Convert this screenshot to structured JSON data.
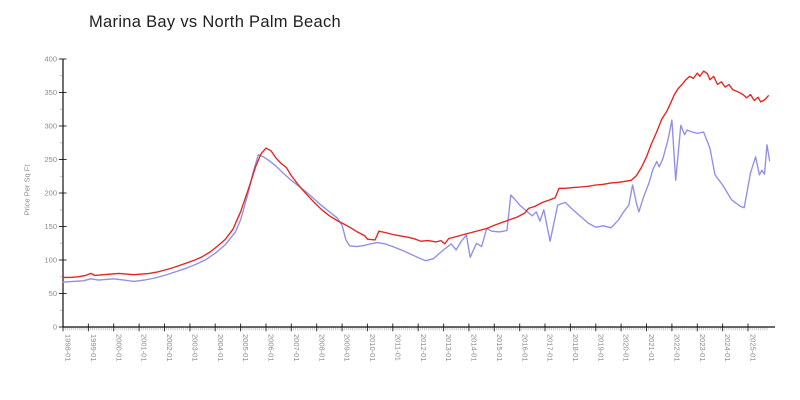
{
  "page": {
    "background": "#ffffff"
  },
  "colors": {
    "axis": "#111111",
    "major_tick": "#333333",
    "minor_tick": "#bdbdbd",
    "tick_label": "#8a8a8a",
    "title": "#1f1f1f"
  },
  "chart_data": {
    "type": "line",
    "title": "Marina Bay vs North Palm Beach",
    "xlabel": "",
    "ylabel": "Price Per Sq Ft",
    "x_unit": "year-month",
    "xlim": [
      1998.0,
      2026.0
    ],
    "ylim": [
      0,
      400
    ],
    "grid": false,
    "legend_position": "none",
    "y_ticks": [
      0,
      50,
      100,
      150,
      200,
      250,
      300,
      350,
      400
    ],
    "x_tick_labels": [
      "1998-01",
      "1999-01",
      "2000-01",
      "2001-01",
      "2002-01",
      "2003-01",
      "2004-01",
      "2005-01",
      "2006-01",
      "2007-01",
      "2008-01",
      "2009-01",
      "2010-01",
      "2011-01",
      "2012-01",
      "2013-01",
      "2014-01",
      "2015-01",
      "2016-01",
      "2017-01",
      "2018-01",
      "2019-01",
      "2020-01",
      "2021-01",
      "2022-01",
      "2023-01",
      "2024-01",
      "2025-01"
    ],
    "series": [
      {
        "name": "Marina Bay",
        "color": "#8f8fe8",
        "points": [
          [
            1998.0,
            67
          ],
          [
            1998.4,
            68
          ],
          [
            1998.8,
            69
          ],
          [
            1999.1,
            72
          ],
          [
            1999.4,
            70
          ],
          [
            1999.7,
            71
          ],
          [
            2000.0,
            72
          ],
          [
            2000.4,
            70
          ],
          [
            2000.8,
            68
          ],
          [
            2001.2,
            70
          ],
          [
            2001.6,
            73
          ],
          [
            2002.0,
            77
          ],
          [
            2002.4,
            82
          ],
          [
            2002.8,
            87
          ],
          [
            2003.2,
            93
          ],
          [
            2003.6,
            100
          ],
          [
            2004.0,
            110
          ],
          [
            2004.4,
            123
          ],
          [
            2004.8,
            142
          ],
          [
            2005.0,
            160
          ],
          [
            2005.3,
            200
          ],
          [
            2005.5,
            232
          ],
          [
            2005.7,
            257
          ],
          [
            2005.9,
            254
          ],
          [
            2006.1,
            249
          ],
          [
            2006.4,
            240
          ],
          [
            2006.7,
            229
          ],
          [
            2007.0,
            219
          ],
          [
            2007.3,
            210
          ],
          [
            2007.6,
            201
          ],
          [
            2007.9,
            191
          ],
          [
            2008.2,
            181
          ],
          [
            2008.5,
            172
          ],
          [
            2008.8,
            163
          ],
          [
            2009.0,
            152
          ],
          [
            2009.15,
            130
          ],
          [
            2009.3,
            121
          ],
          [
            2009.6,
            120
          ],
          [
            2009.9,
            122
          ],
          [
            2010.1,
            124
          ],
          [
            2010.4,
            126
          ],
          [
            2010.7,
            124
          ],
          [
            2011.0,
            120
          ],
          [
            2011.4,
            114
          ],
          [
            2011.8,
            107
          ],
          [
            2012.1,
            102
          ],
          [
            2012.3,
            99
          ],
          [
            2012.6,
            102
          ],
          [
            2012.9,
            112
          ],
          [
            2013.1,
            118
          ],
          [
            2013.3,
            124
          ],
          [
            2013.5,
            115
          ],
          [
            2013.7,
            128
          ],
          [
            2013.9,
            137
          ],
          [
            2014.05,
            104
          ],
          [
            2014.3,
            125
          ],
          [
            2014.5,
            120
          ],
          [
            2014.7,
            147
          ],
          [
            2014.9,
            143
          ],
          [
            2015.2,
            142
          ],
          [
            2015.5,
            144
          ],
          [
            2015.65,
            197
          ],
          [
            2015.8,
            191
          ],
          [
            2016.0,
            182
          ],
          [
            2016.3,
            172
          ],
          [
            2016.5,
            166
          ],
          [
            2016.65,
            172
          ],
          [
            2016.8,
            158
          ],
          [
            2016.95,
            175
          ],
          [
            2017.2,
            128
          ],
          [
            2017.5,
            182
          ],
          [
            2017.8,
            186
          ],
          [
            2018.1,
            175
          ],
          [
            2018.4,
            165
          ],
          [
            2018.7,
            155
          ],
          [
            2019.0,
            149
          ],
          [
            2019.3,
            151
          ],
          [
            2019.6,
            148
          ],
          [
            2019.9,
            160
          ],
          [
            2020.1,
            172
          ],
          [
            2020.3,
            182
          ],
          [
            2020.45,
            212
          ],
          [
            2020.6,
            185
          ],
          [
            2020.7,
            172
          ],
          [
            2020.9,
            196
          ],
          [
            2021.1,
            215
          ],
          [
            2021.25,
            235
          ],
          [
            2021.4,
            247
          ],
          [
            2021.5,
            239
          ],
          [
            2021.65,
            252
          ],
          [
            2021.85,
            280
          ],
          [
            2022.0,
            309
          ],
          [
            2022.15,
            219
          ],
          [
            2022.35,
            301
          ],
          [
            2022.5,
            287
          ],
          [
            2022.6,
            294
          ],
          [
            2022.8,
            291
          ],
          [
            2023.0,
            289
          ],
          [
            2023.25,
            291
          ],
          [
            2023.5,
            267
          ],
          [
            2023.7,
            227
          ],
          [
            2024.0,
            212
          ],
          [
            2024.35,
            190
          ],
          [
            2024.7,
            180
          ],
          [
            2024.85,
            178
          ],
          [
            2025.1,
            230
          ],
          [
            2025.3,
            254
          ],
          [
            2025.45,
            227
          ],
          [
            2025.55,
            234
          ],
          [
            2025.65,
            228
          ],
          [
            2025.75,
            272
          ],
          [
            2025.85,
            248
          ]
        ]
      },
      {
        "name": "North Palm Beach",
        "color": "#e3241f",
        "points": [
          [
            1998.0,
            74
          ],
          [
            1998.3,
            74
          ],
          [
            1998.6,
            75
          ],
          [
            1998.9,
            77
          ],
          [
            1999.1,
            80
          ],
          [
            1999.25,
            77
          ],
          [
            1999.6,
            78
          ],
          [
            1999.9,
            79
          ],
          [
            2000.2,
            80
          ],
          [
            2000.5,
            79
          ],
          [
            2000.8,
            78
          ],
          [
            2001.1,
            79
          ],
          [
            2001.4,
            80
          ],
          [
            2001.7,
            82
          ],
          [
            2002.0,
            85
          ],
          [
            2002.3,
            88
          ],
          [
            2002.6,
            92
          ],
          [
            2002.9,
            96
          ],
          [
            2003.2,
            100
          ],
          [
            2003.5,
            105
          ],
          [
            2003.8,
            112
          ],
          [
            2004.1,
            121
          ],
          [
            2004.4,
            131
          ],
          [
            2004.7,
            146
          ],
          [
            2005.0,
            172
          ],
          [
            2005.3,
            205
          ],
          [
            2005.6,
            240
          ],
          [
            2005.8,
            258
          ],
          [
            2006.0,
            267
          ],
          [
            2006.2,
            263
          ],
          [
            2006.4,
            252
          ],
          [
            2006.6,
            244
          ],
          [
            2006.8,
            238
          ],
          [
            2007.0,
            226
          ],
          [
            2007.3,
            211
          ],
          [
            2007.6,
            198
          ],
          [
            2007.9,
            186
          ],
          [
            2008.2,
            175
          ],
          [
            2008.5,
            166
          ],
          [
            2008.8,
            159
          ],
          [
            2009.0,
            155
          ],
          [
            2009.3,
            149
          ],
          [
            2009.6,
            142
          ],
          [
            2009.9,
            136
          ],
          [
            2010.0,
            131
          ],
          [
            2010.3,
            130
          ],
          [
            2010.45,
            143
          ],
          [
            2010.7,
            141
          ],
          [
            2011.0,
            138
          ],
          [
            2011.3,
            136
          ],
          [
            2011.6,
            134
          ],
          [
            2011.9,
            131
          ],
          [
            2012.1,
            128
          ],
          [
            2012.4,
            129
          ],
          [
            2012.7,
            127
          ],
          [
            2012.9,
            129
          ],
          [
            2013.05,
            124
          ],
          [
            2013.2,
            132
          ],
          [
            2013.5,
            135
          ],
          [
            2013.8,
            138
          ],
          [
            2014.1,
            141
          ],
          [
            2014.4,
            144
          ],
          [
            2014.7,
            147
          ],
          [
            2015.0,
            152
          ],
          [
            2015.3,
            156
          ],
          [
            2015.6,
            160
          ],
          [
            2015.9,
            164
          ],
          [
            2016.2,
            170
          ],
          [
            2016.35,
            177
          ],
          [
            2016.6,
            180
          ],
          [
            2016.9,
            186
          ],
          [
            2017.2,
            190
          ],
          [
            2017.4,
            193
          ],
          [
            2017.55,
            207
          ],
          [
            2017.8,
            207
          ],
          [
            2018.1,
            208
          ],
          [
            2018.4,
            209
          ],
          [
            2018.7,
            210
          ],
          [
            2019.0,
            212
          ],
          [
            2019.3,
            213
          ],
          [
            2019.6,
            215
          ],
          [
            2019.9,
            216
          ],
          [
            2020.1,
            217
          ],
          [
            2020.4,
            219
          ],
          [
            2020.6,
            226
          ],
          [
            2020.8,
            238
          ],
          [
            2021.0,
            254
          ],
          [
            2021.2,
            274
          ],
          [
            2021.4,
            291
          ],
          [
            2021.6,
            310
          ],
          [
            2021.8,
            322
          ],
          [
            2021.95,
            334
          ],
          [
            2022.1,
            347
          ],
          [
            2022.25,
            356
          ],
          [
            2022.4,
            362
          ],
          [
            2022.55,
            369
          ],
          [
            2022.7,
            374
          ],
          [
            2022.85,
            371
          ],
          [
            2023.0,
            379
          ],
          [
            2023.1,
            374
          ],
          [
            2023.25,
            382
          ],
          [
            2023.4,
            378
          ],
          [
            2023.5,
            369
          ],
          [
            2023.65,
            374
          ],
          [
            2023.8,
            362
          ],
          [
            2023.95,
            366
          ],
          [
            2024.1,
            358
          ],
          [
            2024.25,
            362
          ],
          [
            2024.4,
            354
          ],
          [
            2024.6,
            351
          ],
          [
            2024.8,
            347
          ],
          [
            2024.95,
            342
          ],
          [
            2025.1,
            347
          ],
          [
            2025.25,
            338
          ],
          [
            2025.4,
            343
          ],
          [
            2025.5,
            336
          ],
          [
            2025.65,
            339
          ],
          [
            2025.8,
            345
          ]
        ]
      }
    ]
  }
}
